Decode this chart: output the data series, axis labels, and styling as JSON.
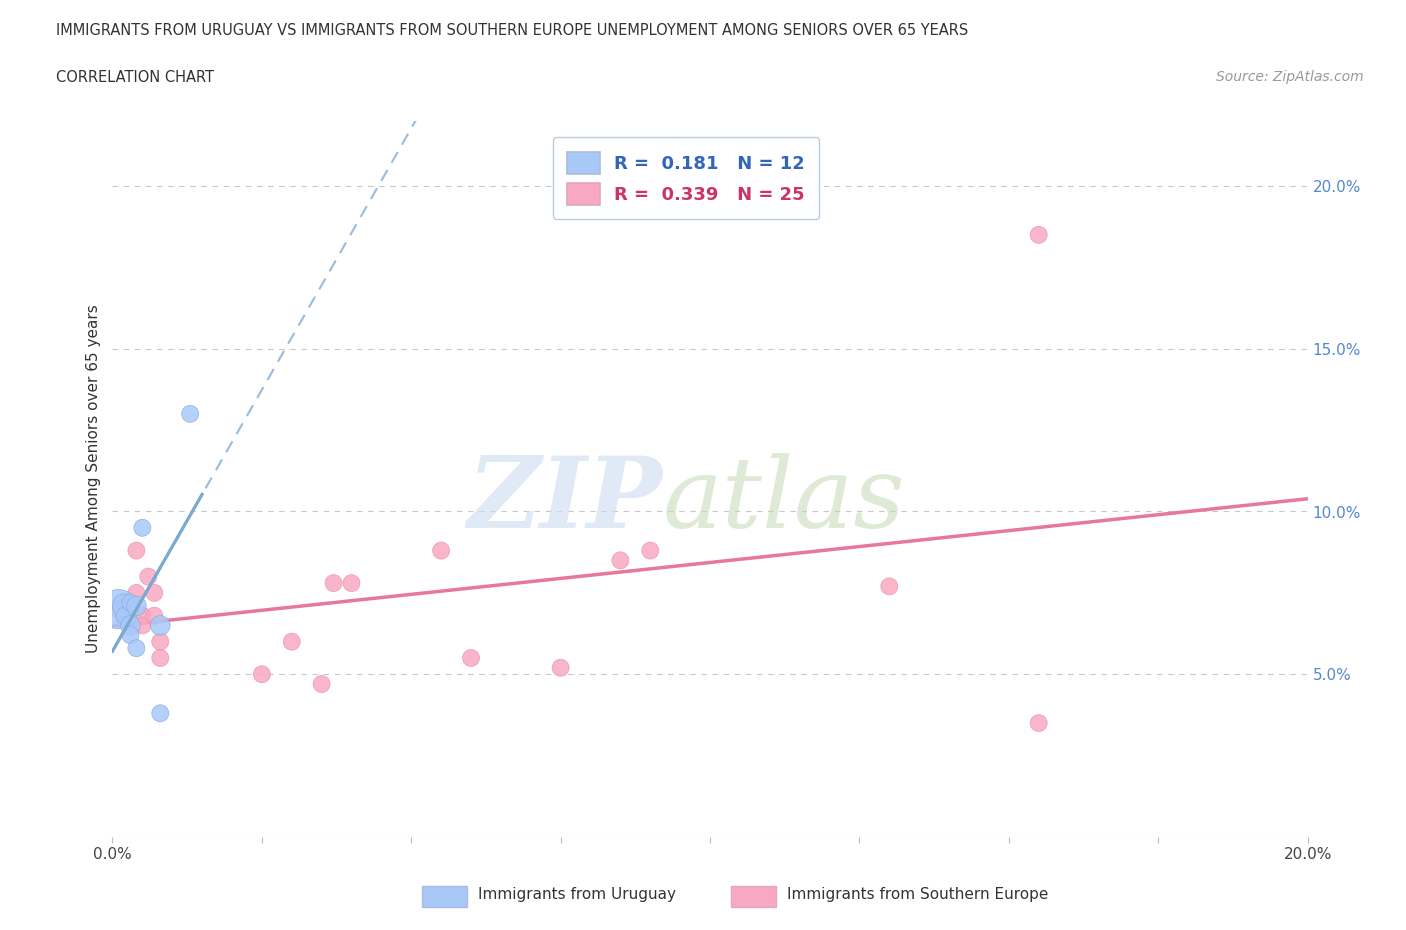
{
  "title_line1": "IMMIGRANTS FROM URUGUAY VS IMMIGRANTS FROM SOUTHERN EUROPE UNEMPLOYMENT AMONG SENIORS OVER 65 YEARS",
  "title_line2": "CORRELATION CHART",
  "source": "Source: ZipAtlas.com",
  "ylabel": "Unemployment Among Seniors over 65 years",
  "xmin": 0.0,
  "xmax": 0.2,
  "ymin": 0.0,
  "ymax": 0.22,
  "yticks": [
    0.05,
    0.1,
    0.15,
    0.2
  ],
  "xticks": [
    0.0,
    0.025,
    0.05,
    0.075,
    0.1,
    0.125,
    0.15,
    0.175,
    0.2
  ],
  "ytick_labels_right": [
    "5.0%",
    "10.0%",
    "15.0%",
    "20.0%"
  ],
  "legend_R_uruguay": "0.181",
  "legend_N_uruguay": "12",
  "legend_R_southern": "0.339",
  "legend_N_southern": "25",
  "uruguay_color": "#a8c8f8",
  "southern_color": "#f8a8c0",
  "uruguay_line_color": "#7aaad0",
  "southern_line_color": "#e87898",
  "uruguay_marker_edge": "#80aae0",
  "southern_marker_edge": "#e890aa",
  "uruguay_x": [
    0.001,
    0.002,
    0.002,
    0.003,
    0.003,
    0.003,
    0.004,
    0.004,
    0.005,
    0.008,
    0.008,
    0.013
  ],
  "uruguay_y": [
    0.07,
    0.071,
    0.068,
    0.072,
    0.065,
    0.062,
    0.071,
    0.058,
    0.095,
    0.065,
    0.038,
    0.13
  ],
  "uruguay_sizes": [
    800,
    300,
    150,
    150,
    200,
    150,
    200,
    150,
    150,
    200,
    150,
    150
  ],
  "southern_x": [
    0.001,
    0.002,
    0.003,
    0.004,
    0.004,
    0.005,
    0.005,
    0.006,
    0.007,
    0.007,
    0.008,
    0.008,
    0.025,
    0.03,
    0.035,
    0.037,
    0.04,
    0.055,
    0.06,
    0.075,
    0.085,
    0.09,
    0.13,
    0.155,
    0.155
  ],
  "southern_y": [
    0.07,
    0.067,
    0.072,
    0.088,
    0.075,
    0.068,
    0.065,
    0.08,
    0.075,
    0.068,
    0.06,
    0.055,
    0.05,
    0.06,
    0.047,
    0.078,
    0.078,
    0.088,
    0.055,
    0.052,
    0.085,
    0.088,
    0.077,
    0.185,
    0.035
  ],
  "southern_sizes": [
    150,
    150,
    150,
    150,
    150,
    150,
    150,
    150,
    150,
    150,
    150,
    150,
    150,
    150,
    150,
    150,
    150,
    150,
    150,
    150,
    150,
    150,
    150,
    150,
    150
  ],
  "background_color": "#ffffff",
  "grid_color": "#c8c8c8"
}
